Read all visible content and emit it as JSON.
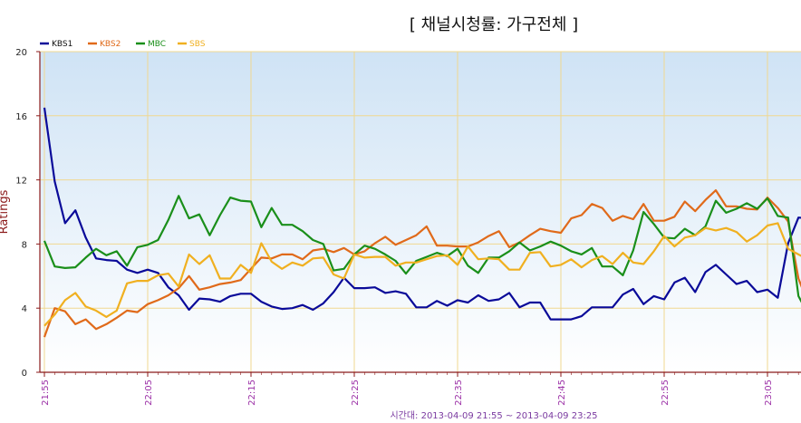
{
  "chart_data": {
    "type": "line",
    "title": "[ 채널시청률: 가구전체 ]",
    "xlabel": "",
    "ylabel": "Ratings",
    "ylim": [
      0,
      20
    ],
    "yticks": [
      "0",
      "4",
      "8",
      "12",
      "16",
      "20"
    ],
    "xtick_labels": [
      "21:55",
      "22:05",
      "22:15",
      "22:25",
      "22:35",
      "22:45",
      "22:55",
      "23:05"
    ],
    "x_start": "21:55",
    "x_step_minutes": 1,
    "grid": true,
    "legend_position": "top-left",
    "footer": "시간대: 2013-04-09 21:55 ~ 2013-04-09 23:25",
    "series": [
      {
        "name": "KBS1",
        "color": "#0a0a99",
        "values": [
          16.5,
          11.9,
          9.3,
          10.1,
          8.4,
          7.1,
          7.0,
          6.95,
          6.4,
          6.2,
          6.4,
          6.2,
          5.3,
          4.8,
          3.9,
          4.6,
          4.55,
          4.4,
          4.75,
          4.9,
          4.9,
          4.4,
          4.1,
          3.95,
          4.0,
          4.2,
          3.9,
          4.3,
          5.0,
          5.9,
          5.25,
          5.25,
          5.3,
          4.95,
          5.05,
          4.9,
          4.05,
          4.05,
          4.45,
          4.15,
          4.5,
          4.35,
          4.8,
          4.45,
          4.55,
          4.95,
          4.05,
          4.35,
          4.35,
          3.3,
          3.3,
          3.3,
          3.5,
          4.05,
          4.05,
          4.05,
          4.85,
          5.2,
          4.25,
          4.75,
          4.55,
          5.6,
          5.9,
          5.0,
          6.25,
          6.7,
          6.1,
          5.5,
          5.7,
          5.0,
          5.15,
          4.65,
          8.05,
          9.65,
          9.6
        ]
      },
      {
        "name": "KBS2",
        "color": "#e06a1a",
        "values": [
          2.2,
          4.0,
          3.8,
          3.0,
          3.3,
          2.7,
          3.0,
          3.4,
          3.85,
          3.75,
          4.25,
          4.5,
          4.8,
          5.25,
          6.0,
          5.15,
          5.3,
          5.5,
          5.6,
          5.75,
          6.45,
          7.15,
          7.1,
          7.35,
          7.35,
          7.05,
          7.6,
          7.7,
          7.5,
          7.75,
          7.35,
          7.55,
          8.05,
          8.45,
          7.95,
          8.25,
          8.55,
          9.1,
          7.9,
          7.9,
          7.85,
          7.85,
          8.1,
          8.5,
          8.8,
          7.8,
          8.1,
          8.55,
          8.95,
          8.8,
          8.7,
          9.6,
          9.8,
          10.5,
          10.25,
          9.45,
          9.75,
          9.55,
          10.5,
          9.45,
          9.45,
          9.7,
          10.65,
          10.05,
          10.75,
          11.35,
          10.35,
          10.35,
          10.2,
          10.15,
          10.9,
          10.25,
          9.4,
          5.85,
          4.2
        ]
      },
      {
        "name": "MBC",
        "color": "#1a8f1a",
        "values": [
          8.2,
          6.6,
          6.5,
          6.55,
          7.15,
          7.7,
          7.3,
          7.55,
          6.65,
          7.8,
          7.95,
          8.25,
          9.5,
          11.0,
          9.6,
          9.85,
          8.55,
          9.8,
          10.9,
          10.7,
          10.65,
          9.05,
          10.25,
          9.2,
          9.2,
          8.8,
          8.25,
          8.0,
          6.35,
          6.45,
          7.35,
          7.9,
          7.7,
          7.35,
          6.95,
          6.15,
          6.95,
          7.2,
          7.45,
          7.25,
          7.7,
          6.65,
          6.2,
          7.15,
          7.15,
          7.55,
          8.1,
          7.6,
          7.85,
          8.15,
          7.9,
          7.55,
          7.35,
          7.75,
          6.6,
          6.6,
          6.05,
          7.6,
          10.0,
          9.25,
          8.4,
          8.35,
          8.95,
          8.55,
          9.1,
          10.7,
          9.95,
          10.2,
          10.55,
          10.2,
          10.85,
          9.75,
          9.65,
          4.75,
          3.55
        ]
      },
      {
        "name": "SBS",
        "color": "#f0b020",
        "values": [
          2.9,
          3.6,
          4.5,
          4.95,
          4.1,
          3.85,
          3.45,
          3.85,
          5.55,
          5.7,
          5.7,
          6.05,
          6.15,
          5.35,
          7.35,
          6.75,
          7.3,
          5.85,
          5.85,
          6.7,
          6.2,
          8.05,
          6.9,
          6.45,
          6.85,
          6.65,
          7.1,
          7.15,
          6.1,
          5.85,
          7.35,
          7.15,
          7.2,
          7.2,
          6.65,
          6.85,
          6.85,
          7.05,
          7.25,
          7.3,
          6.7,
          7.85,
          7.05,
          7.1,
          7.05,
          6.4,
          6.4,
          7.45,
          7.5,
          6.6,
          6.7,
          7.05,
          6.55,
          7.0,
          7.25,
          6.75,
          7.45,
          6.85,
          6.75,
          7.55,
          8.5,
          7.85,
          8.4,
          8.55,
          9.0,
          8.85,
          9.0,
          8.75,
          8.15,
          8.55,
          9.15,
          9.3,
          7.7,
          7.35,
          7.0
        ]
      }
    ]
  }
}
